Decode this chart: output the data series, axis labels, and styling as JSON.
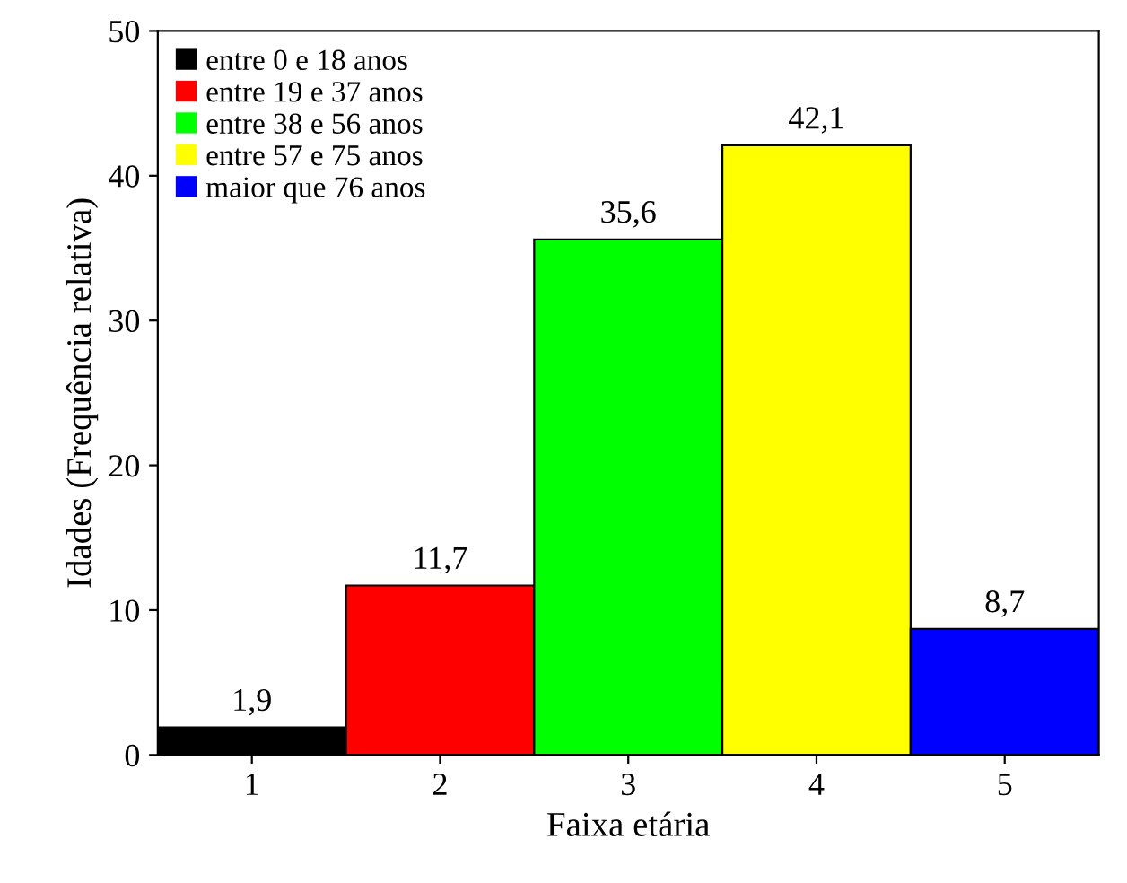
{
  "chart_data": {
    "type": "bar",
    "xlabel": "Faixa etária",
    "ylabel": "Idades (Frequência relativa)",
    "categories": [
      "1",
      "2",
      "3",
      "4",
      "5"
    ],
    "series": [
      {
        "name": "entre 0 e 18 anos",
        "color": "#000000",
        "values": [
          1.9,
          null,
          null,
          null,
          null
        ],
        "value_labels": [
          "1,9",
          null,
          null,
          null,
          null
        ]
      },
      {
        "name": "entre 19 e 37 anos",
        "color": "#ff0000",
        "values": [
          null,
          11.7,
          null,
          null,
          null
        ],
        "value_labels": [
          null,
          "11,7",
          null,
          null,
          null
        ]
      },
      {
        "name": "entre 38 e 56 anos",
        "color": "#00ff00",
        "values": [
          null,
          null,
          35.6,
          null,
          null
        ],
        "value_labels": [
          null,
          null,
          "35,6",
          null,
          null
        ]
      },
      {
        "name": "entre 57 e 75 anos",
        "color": "#ffff00",
        "values": [
          null,
          null,
          null,
          42.1,
          null
        ],
        "value_labels": [
          null,
          null,
          null,
          "42,1",
          null
        ]
      },
      {
        "name": "maior que 76 anos",
        "color": "#0000ff",
        "values": [
          null,
          null,
          null,
          null,
          8.7
        ],
        "value_labels": [
          null,
          null,
          null,
          null,
          "8,7"
        ]
      }
    ],
    "ylim": [
      0,
      50
    ],
    "yticks": [
      0,
      10,
      20,
      30,
      40,
      50
    ],
    "legend": "top left",
    "grid": false
  }
}
